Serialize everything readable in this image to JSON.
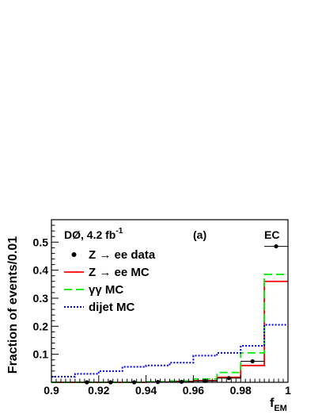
{
  "chart_data": {
    "type": "line",
    "drawstyle": "steps",
    "title": "",
    "xlabel": "f",
    "xlabel_sub": "EM",
    "ylabel": "Fraction of events/0.01",
    "xlim": [
      0.9,
      1.0
    ],
    "ylim": [
      0,
      0.58
    ],
    "x_ticks": [
      0.9,
      0.92,
      0.94,
      0.96,
      0.98,
      1.0
    ],
    "x_tick_labels": [
      "0.9",
      "0.92",
      "0.94",
      "0.96",
      "0.98",
      "1"
    ],
    "y_ticks": [
      0.1,
      0.2,
      0.3,
      0.4,
      0.5
    ],
    "y_tick_labels": [
      "0.1",
      "0.2",
      "0.3",
      "0.4",
      "0.5"
    ],
    "grid": false,
    "legend_position": "top-left",
    "annotations": {
      "experiment": "DØ, 4.2 fb",
      "experiment_sup": "-1",
      "panel": "(a)",
      "region": "EC"
    },
    "bin_edges": [
      0.9,
      0.91,
      0.92,
      0.93,
      0.94,
      0.95,
      0.96,
      0.97,
      0.98,
      0.99,
      1.0
    ],
    "series": [
      {
        "name": "Z → ee data",
        "style": "points",
        "color": "#000000",
        "x": [
          0.915,
          0.925,
          0.935,
          0.945,
          0.955,
          0.965,
          0.975,
          0.985,
          0.995
        ],
        "y": [
          0.0,
          0.0,
          0.0,
          0.001,
          0.002,
          0.005,
          0.015,
          0.075,
          0.485
        ]
      },
      {
        "name": "Z → ee MC",
        "style": "solid",
        "color": "#ff0000",
        "values": [
          0.0,
          0.0,
          0.0,
          0.0,
          0.001,
          0.003,
          0.006,
          0.018,
          0.06,
          0.36
        ]
      },
      {
        "name": "γγ MC",
        "style": "dashed",
        "color": "#00ee00",
        "values": [
          0.0,
          0.0,
          0.0,
          0.0,
          0.002,
          0.005,
          0.012,
          0.035,
          0.105,
          0.385
        ]
      },
      {
        "name": "dijet MC",
        "style": "dotted",
        "color": "#0000ee",
        "values": [
          0.02,
          0.03,
          0.04,
          0.055,
          0.06,
          0.07,
          0.095,
          0.105,
          0.13,
          0.205
        ]
      }
    ]
  }
}
